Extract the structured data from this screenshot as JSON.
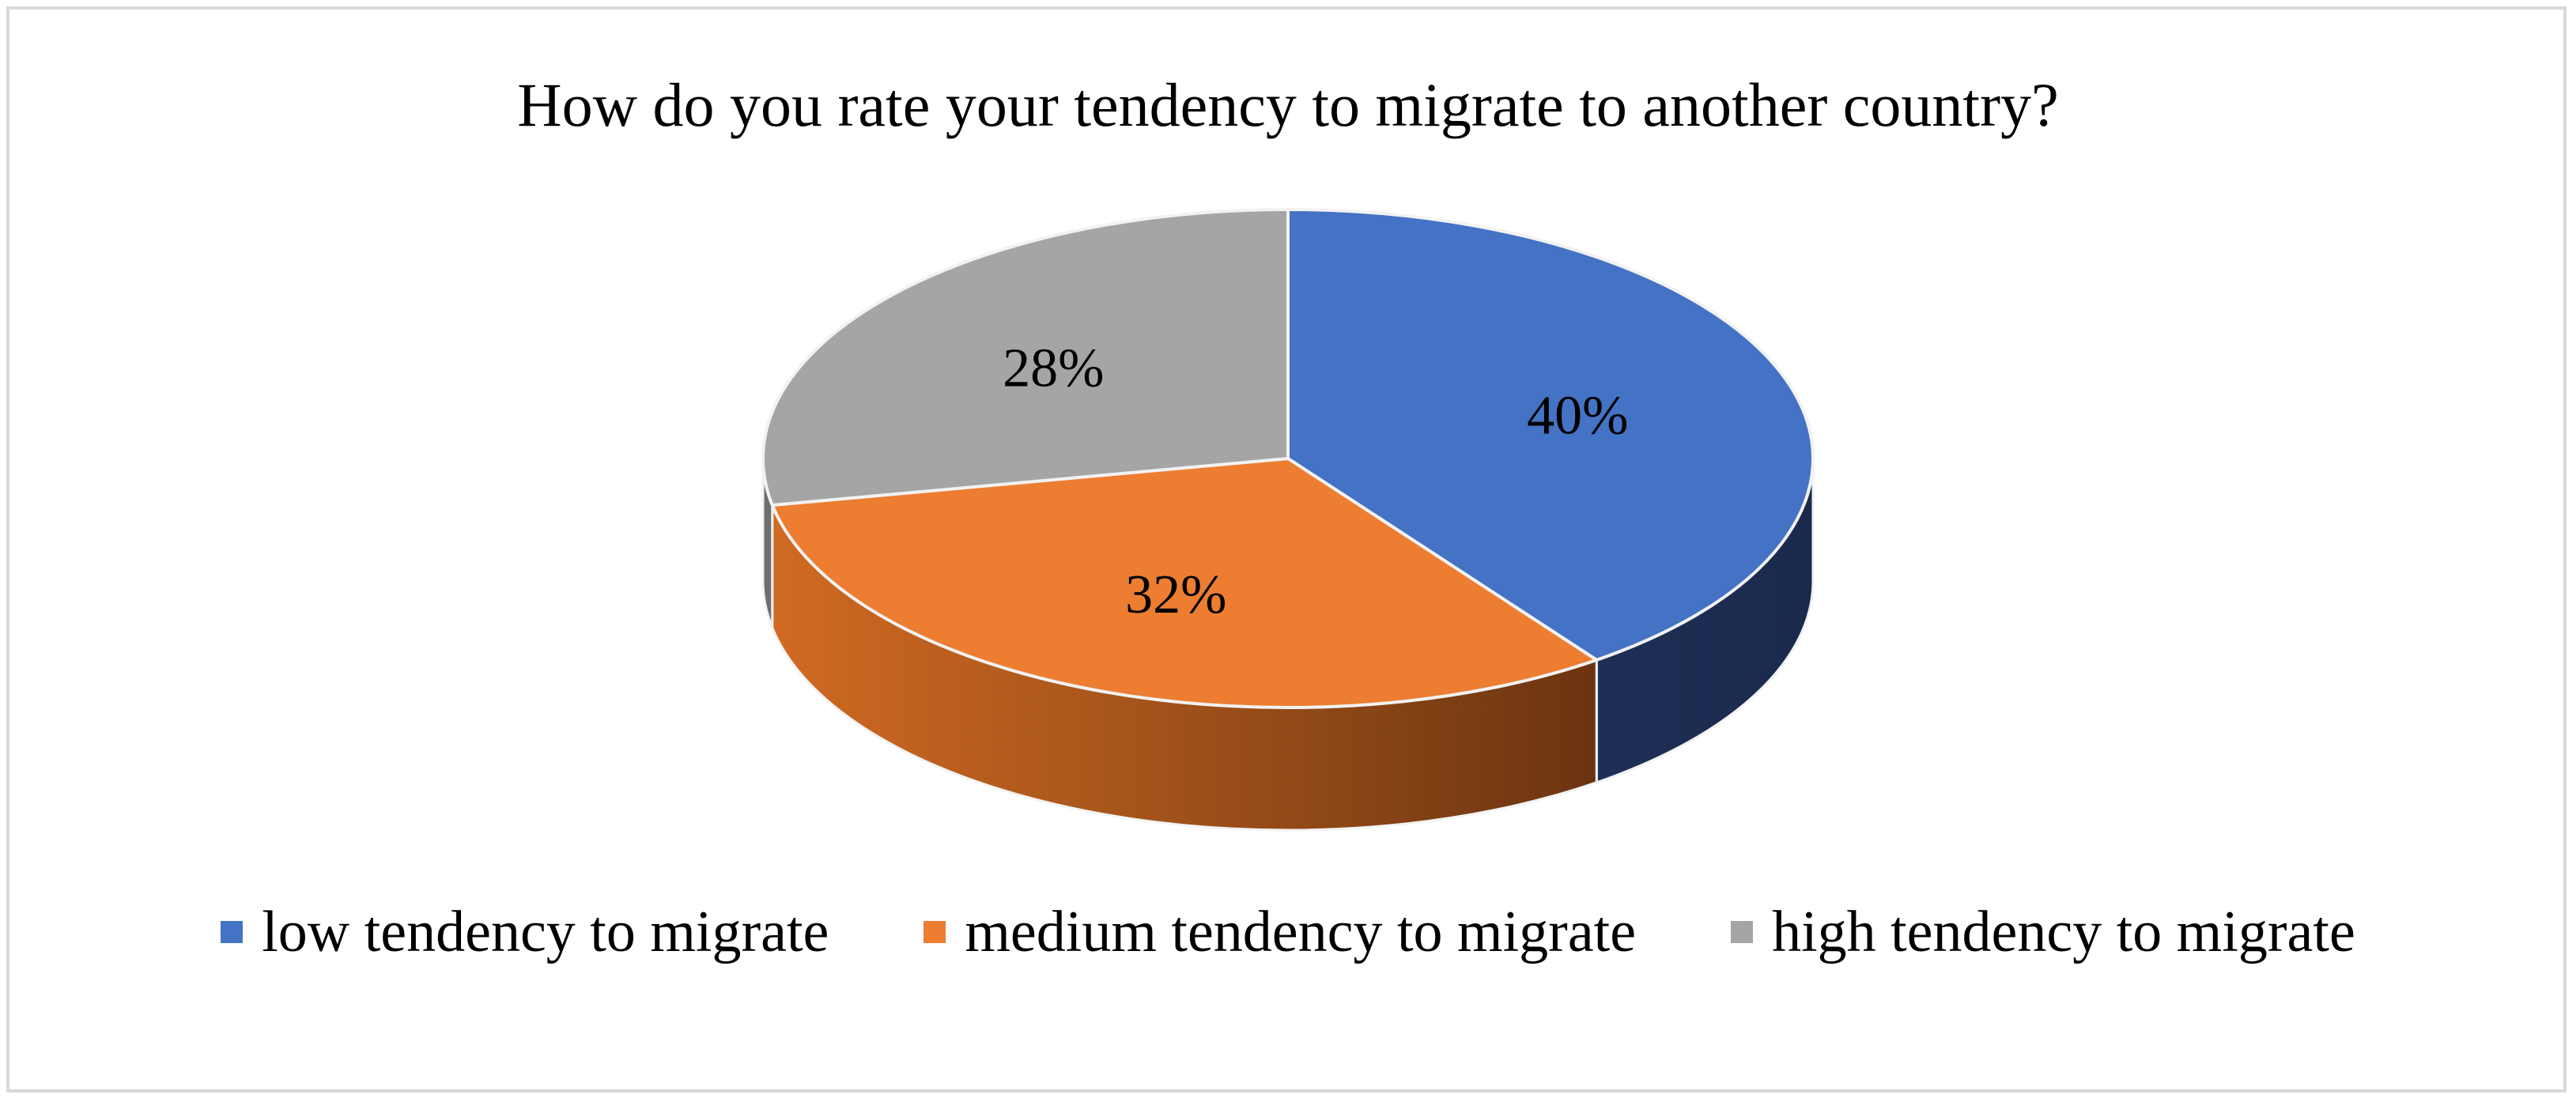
{
  "chart_data": {
    "type": "pie",
    "title": "How do you rate your tendency to migrate to another country?",
    "categories": [
      "low tendency to migrate",
      "medium tendency to migrate",
      "high tendency to migrate"
    ],
    "values": [
      40,
      32,
      28
    ],
    "data_labels": [
      "40%",
      "32%",
      "28%"
    ],
    "colors": [
      "#4472C4",
      "#ED7D31",
      "#A5A5A5"
    ],
    "style": "3d",
    "legend_position": "bottom"
  }
}
